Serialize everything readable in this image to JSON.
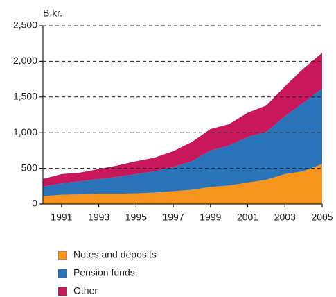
{
  "chart_data": {
    "type": "stacked_area",
    "y_unit_label": "B.kr.",
    "x": [
      1990,
      1991,
      1992,
      1993,
      1994,
      1995,
      1996,
      1997,
      1998,
      1999,
      2000,
      2001,
      2002,
      2003,
      2004,
      2005
    ],
    "xlim": [
      1990,
      2005
    ],
    "xticks": [
      1991,
      1993,
      1995,
      1997,
      1999,
      2001,
      2003,
      2005
    ],
    "ylim": [
      0,
      2500
    ],
    "yticks": [
      0,
      500,
      {
        "value": 1000,
        "label": "1,000"
      },
      {
        "value": 1500,
        "label": "1,500"
      },
      {
        "value": 2000,
        "label": "2,000"
      },
      {
        "value": 2500,
        "label": "2,500"
      }
    ],
    "grid": true,
    "legend": "bottom",
    "series": [
      {
        "name": "Notes and deposits",
        "color": "#f7941d",
        "values": [
          110,
          130,
          135,
          145,
          145,
          150,
          160,
          180,
          200,
          240,
          260,
          300,
          340,
          420,
          460,
          560
        ]
      },
      {
        "name": "Pension funds",
        "color": "#2b73b9",
        "values": [
          135,
          160,
          185,
          205,
          235,
          270,
          300,
          340,
          400,
          510,
          560,
          640,
          670,
          810,
          960,
          1060
        ]
      },
      {
        "name": "Other",
        "color": "#c8175a",
        "values": [
          105,
          130,
          120,
          140,
          160,
          180,
          190,
          220,
          270,
          300,
          300,
          340,
          370,
          420,
          480,
          500
        ]
      }
    ]
  }
}
